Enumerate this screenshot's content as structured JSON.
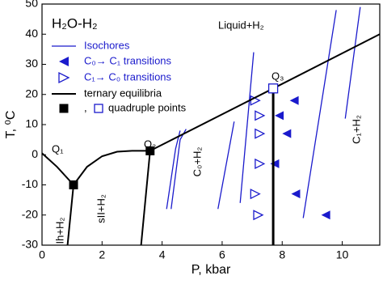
{
  "chart_data": {
    "type": "line",
    "title": "H₂O-H₂",
    "x_label": "P, kbar",
    "y_label": "T, ⁰C",
    "xlim": [
      0,
      11.25
    ],
    "ylim": [
      -30,
      50
    ],
    "xticks": [
      0,
      2,
      4,
      6,
      8,
      10
    ],
    "yticks": [
      -30,
      -20,
      -10,
      0,
      10,
      20,
      30,
      40,
      50
    ],
    "annotations": [
      "Liquid+H₂",
      "Ih+H₂",
      "sII+H₂",
      "C₀+H₂",
      "C₁+H₂",
      "Q₁",
      "Q₂",
      "Q₃"
    ],
    "series": [
      {
        "name": "Isochores",
        "color": "#1a1acc",
        "marker": "line",
        "width": 1.3,
        "segments": [
          {
            "x": [
              4.15,
              4.45,
              4.6
            ],
            "y": [
              -18,
              2,
              8
            ]
          },
          {
            "x": [
              4.3,
              4.6,
              4.8
            ],
            "y": [
              -18,
              5,
              8.5
            ]
          },
          {
            "x": [
              5.86,
              6.4
            ],
            "y": [
              -18,
              11
            ]
          },
          {
            "x": [
              6.6,
              7.05
            ],
            "y": [
              -16,
              34
            ]
          },
          {
            "x": [
              8.7,
              9.8
            ],
            "y": [
              -21,
              48
            ]
          },
          {
            "x": [
              10.1,
              10.6
            ],
            "y": [
              12,
              49
            ]
          }
        ]
      },
      {
        "name": "C₀→ C₁ transitions",
        "color": "#1a1acc",
        "marker": "triangle-left-filled",
        "x": [
          8.4,
          7.9,
          8.15,
          7.75,
          8.45,
          9.45
        ],
        "y": [
          18,
          13,
          7,
          -3,
          -13,
          -20
        ]
      },
      {
        "name": "C₁→ C₀ transitions",
        "color": "#1a1acc",
        "marker": "triangle-right-open",
        "x": [
          7.1,
          7.25,
          7.25,
          7.25,
          7.1,
          7.2
        ],
        "y": [
          18,
          13,
          7,
          -3,
          -13,
          -20
        ]
      },
      {
        "name": "ternary equilibria",
        "color": "#000000",
        "marker": "line",
        "width": 2,
        "segments": [
          {
            "x": [
              0,
              0.5,
              1.05
            ],
            "y": [
              0.5,
              -4,
              -10
            ]
          },
          {
            "x": [
              1.05,
              1.5,
              2,
              2.5,
              3,
              3.6
            ],
            "y": [
              -10,
              -4,
              -0.5,
              1,
              1.3,
              1.3
            ]
          },
          {
            "x": [
              3.6,
              7.7,
              11.25
            ],
            "y": [
              1.3,
              22,
              40
            ]
          },
          {
            "x": [
              1.05,
              0.85
            ],
            "y": [
              -10,
              -30
            ]
          },
          {
            "x": [
              3.6,
              3.3
            ],
            "y": [
              1.3,
              -30
            ]
          },
          {
            "x": [
              7.7,
              7.7
            ],
            "y": [
              22,
              -30
            ]
          }
        ]
      },
      {
        "name": ",",
        "color": "#000000",
        "marker": "square-filled",
        "x": [
          1.05,
          3.6
        ],
        "y": [
          -10,
          1.3
        ]
      },
      {
        "name": "quadruple points",
        "color": "#1a1acc",
        "marker": "square-open",
        "x": [
          7.7
        ],
        "y": [
          22
        ]
      }
    ]
  }
}
